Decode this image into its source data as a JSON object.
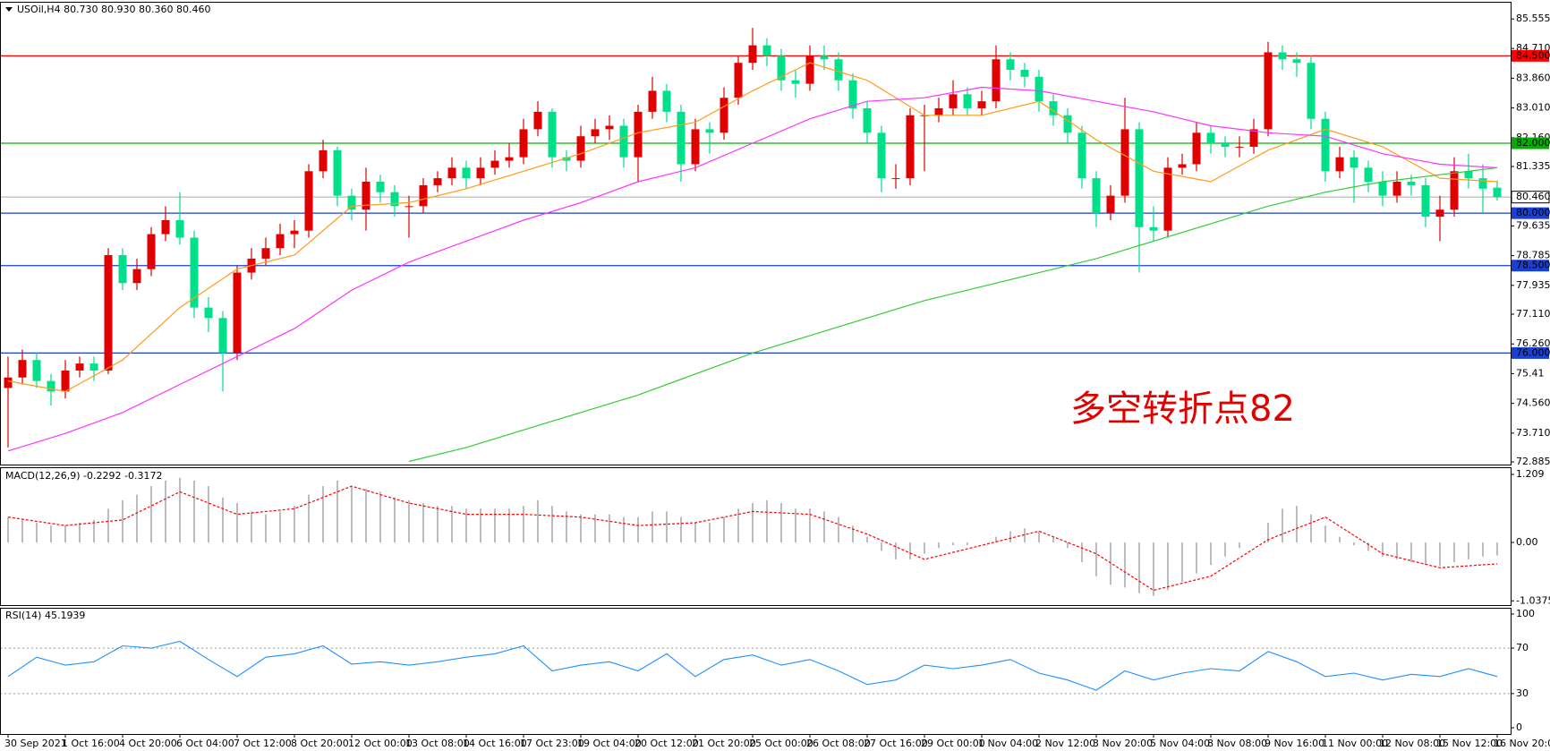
{
  "chart_data": {
    "type": "candlestick",
    "title": "USOil,H4  80.730 80.930 80.360 80.460",
    "annotation": "多空转折点82",
    "categories": [
      "30 Sep 2021",
      null,
      null,
      null,
      "1 Oct 16:00",
      null,
      null,
      null,
      "4 Oct 20:00",
      null,
      null,
      null,
      "6 Oct 04:00",
      null,
      null,
      null,
      "7 Oct 12:00",
      null,
      null,
      null,
      "8 Oct 20:00",
      null,
      null,
      null,
      "12 Oct 00:00",
      null,
      null,
      null,
      "13 Oct 08:00",
      null,
      null,
      null,
      "14 Oct 16:00",
      null,
      null,
      null,
      "17 Oct 23:00",
      null,
      null,
      null,
      "19 Oct 04:00",
      null,
      null,
      null,
      "20 Oct 12:00",
      null,
      null,
      null,
      "21 Oct 20:00",
      null,
      null,
      null,
      "25 Oct 00:00",
      null,
      null,
      null,
      "26 Oct 08:00",
      null,
      null,
      null,
      "27 Oct 16:00",
      null,
      null,
      null,
      "29 Oct 00:00",
      null,
      null,
      null,
      "1 Nov 04:00",
      null,
      null,
      null,
      "2 Nov 12:00",
      null,
      null,
      null,
      "3 Nov 20:00",
      null,
      null,
      null,
      "5 Nov 04:00",
      null,
      null,
      null,
      "8 Nov 08:00",
      null,
      null,
      null,
      "9 Nov 16:00",
      null,
      null,
      null,
      "11 Nov 00:00",
      null,
      null,
      null,
      "12 Nov 08:00",
      null,
      null,
      null,
      "15 Nov 12:00",
      null,
      null,
      null,
      "16 Nov 20:00"
    ],
    "open": [
      75.0,
      75.3,
      75.8,
      75.2,
      74.9,
      75.5,
      75.7,
      75.5,
      78.8,
      78.0,
      78.4,
      79.4,
      79.8,
      79.3,
      77.3,
      77.0,
      76.0,
      78.3,
      78.7,
      79.0,
      79.4,
      79.5,
      81.2,
      81.8,
      80.5,
      80.1,
      80.9,
      80.6,
      80.2,
      80.2,
      80.8,
      81.0,
      81.3,
      81.0,
      81.3,
      81.5,
      81.6,
      82.4,
      82.9,
      81.6,
      81.5,
      82.2,
      82.4,
      82.5,
      81.6,
      82.9,
      83.5,
      82.9,
      81.4,
      82.4,
      82.3,
      83.3,
      84.3,
      84.8,
      84.5,
      83.8,
      83.7,
      84.5,
      84.4,
      83.8,
      83.0,
      82.3,
      81.0,
      81.0,
      82.8,
      82.8,
      83.0,
      83.4,
      83.0,
      83.2,
      84.4,
      84.1,
      83.9,
      83.2,
      82.8,
      82.3,
      81.0,
      80.0,
      80.5,
      82.4,
      79.6,
      79.5,
      81.3,
      81.4,
      82.3,
      82.0,
      81.9,
      81.9,
      82.4,
      84.6,
      84.4,
      84.3,
      82.7,
      81.2,
      81.6,
      81.3,
      80.9,
      80.5,
      80.9,
      80.8,
      79.9,
      80.1,
      81.2,
      81.0,
      80.73
    ],
    "high": [
      75.9,
      76.1,
      76.0,
      75.4,
      75.8,
      75.9,
      75.9,
      79.0,
      79.0,
      78.7,
      79.6,
      80.2,
      80.6,
      79.5,
      77.6,
      77.2,
      78.5,
      79.0,
      79.3,
      79.7,
      79.8,
      81.4,
      82.1,
      81.9,
      80.7,
      81.3,
      81.1,
      80.8,
      80.5,
      81.0,
      81.2,
      81.6,
      81.5,
      81.6,
      81.8,
      82.0,
      82.7,
      83.2,
      83.0,
      81.8,
      82.5,
      82.7,
      82.8,
      82.7,
      83.1,
      83.9,
      83.7,
      83.1,
      82.7,
      82.6,
      83.6,
      84.5,
      85.3,
      85.0,
      84.7,
      84.1,
      84.8,
      84.8,
      84.6,
      84.0,
      83.2,
      82.5,
      81.4,
      83.0,
      83.1,
      83.3,
      83.8,
      83.6,
      83.5,
      84.8,
      84.6,
      84.3,
      84.1,
      83.4,
      83.0,
      82.5,
      81.2,
      80.8,
      83.3,
      82.6,
      80.2,
      81.6,
      81.7,
      82.6,
      82.5,
      82.2,
      82.2,
      82.7,
      84.9,
      84.8,
      84.6,
      84.5,
      82.9,
      81.9,
      81.8,
      81.5,
      81.2,
      81.2,
      81.1,
      81.0,
      80.5,
      81.6,
      81.7,
      81.4,
      80.93
    ],
    "low": [
      73.3,
      75.1,
      75.0,
      74.5,
      74.7,
      75.3,
      75.2,
      75.4,
      77.8,
      77.8,
      78.2,
      79.2,
      79.1,
      77.0,
      76.6,
      74.9,
      75.8,
      78.1,
      78.5,
      78.8,
      79.0,
      79.3,
      81.0,
      80.2,
      79.8,
      79.5,
      80.3,
      79.9,
      79.3,
      80.0,
      80.6,
      80.8,
      80.7,
      80.8,
      81.1,
      81.3,
      81.4,
      82.2,
      81.3,
      81.2,
      81.3,
      82.0,
      82.1,
      81.3,
      80.9,
      82.7,
      82.6,
      80.9,
      81.2,
      81.7,
      82.1,
      83.1,
      84.1,
      84.2,
      83.5,
      83.3,
      83.5,
      84.1,
      83.5,
      82.7,
      82.0,
      80.6,
      80.7,
      80.8,
      81.2,
      82.6,
      82.8,
      82.8,
      82.8,
      83.0,
      83.8,
      83.6,
      82.9,
      82.5,
      82.0,
      80.7,
      79.6,
      79.8,
      80.3,
      78.3,
      79.2,
      79.3,
      81.1,
      81.2,
      81.7,
      81.6,
      81.6,
      81.7,
      82.2,
      84.1,
      83.9,
      82.4,
      80.9,
      81.0,
      80.3,
      80.6,
      80.2,
      80.3,
      80.5,
      79.6,
      79.2,
      79.9,
      80.7,
      80.0,
      80.36
    ],
    "close": [
      75.3,
      75.8,
      75.2,
      74.9,
      75.5,
      75.7,
      75.5,
      78.8,
      78.0,
      78.4,
      79.4,
      79.8,
      79.3,
      77.3,
      77.0,
      76.0,
      78.3,
      78.7,
      79.0,
      79.4,
      79.5,
      81.2,
      81.8,
      80.5,
      80.1,
      80.9,
      80.6,
      80.2,
      80.2,
      80.8,
      81.0,
      81.3,
      81.0,
      81.3,
      81.5,
      81.6,
      82.4,
      82.9,
      81.6,
      81.5,
      82.2,
      82.4,
      82.5,
      81.6,
      82.9,
      83.5,
      82.9,
      81.4,
      82.4,
      82.3,
      83.3,
      84.3,
      84.8,
      84.5,
      83.8,
      83.7,
      84.5,
      84.4,
      83.8,
      83.0,
      82.3,
      81.0,
      81.0,
      82.8,
      82.8,
      83.0,
      83.4,
      83.0,
      83.2,
      84.4,
      84.1,
      83.9,
      83.2,
      82.8,
      82.3,
      81.0,
      80.0,
      80.5,
      82.4,
      79.6,
      79.5,
      81.3,
      81.4,
      82.3,
      82.0,
      81.9,
      81.9,
      82.4,
      84.6,
      84.4,
      84.3,
      82.7,
      81.2,
      81.6,
      81.3,
      80.9,
      80.5,
      80.9,
      80.8,
      79.9,
      80.1,
      81.2,
      81.0,
      80.7,
      80.46
    ],
    "up_color": "#e00000",
    "down_color": "#00e08a",
    "ylim": [
      72.81,
      86.02
    ],
    "yticks": [
      85.555,
      {
        "value": 84.71,
        "label": "84.710"
      },
      {
        "value": 83.86,
        "label": "83.860"
      },
      {
        "value": 83.01,
        "label": "83.010"
      },
      {
        "value": 82.16,
        "label": "82.160"
      },
      81.335,
      79.635,
      78.785,
      77.935,
      {
        "value": 77.11,
        "label": "77.110"
      },
      {
        "value": 76.26,
        "label": "76.260"
      },
      75.41,
      {
        "value": 74.56,
        "label": "74.560"
      },
      {
        "value": 73.71,
        "label": "73.710"
      },
      72.885
    ],
    "levels": [
      {
        "value": 84.5,
        "label": "84.500",
        "color": "#ff0000"
      },
      {
        "value": 82,
        "label": "82.000",
        "color": "#00b000"
      },
      {
        "value": 80,
        "label": "80.000",
        "color": "#1a3fd6"
      },
      {
        "value": 78.5,
        "label": "78.500",
        "color": "#1a3fd6"
      },
      {
        "value": 76,
        "label": "76.000",
        "color": "#1a3fd6"
      }
    ],
    "last_price": {
      "value": 80.46,
      "label": "80.460",
      "color": "#a8a8a8"
    },
    "moving_averages": [
      {
        "color": "#ff9a1a",
        "x": [
          0,
          4,
          8,
          12,
          16,
          20,
          24,
          28,
          32,
          36,
          40,
          44,
          48,
          52,
          56,
          60,
          64,
          68,
          72,
          76,
          80,
          84,
          88,
          92,
          96,
          100,
          104
        ],
        "values": [
          75.2,
          74.9,
          75.8,
          77.3,
          78.4,
          78.8,
          80.2,
          80.3,
          80.7,
          81.2,
          81.7,
          82.3,
          82.6,
          83.5,
          84.3,
          83.8,
          82.8,
          82.8,
          83.2,
          82.1,
          81.2,
          80.9,
          81.8,
          82.4,
          81.9,
          81.0,
          80.9
        ]
      },
      {
        "color": "#ff33ff",
        "x": [
          0,
          4,
          8,
          12,
          16,
          20,
          24,
          28,
          32,
          36,
          40,
          44,
          48,
          52,
          56,
          60,
          64,
          68,
          72,
          76,
          80,
          84,
          88,
          92,
          96,
          100,
          104
        ],
        "values": [
          73.2,
          73.7,
          74.3,
          75.1,
          75.9,
          76.7,
          77.8,
          78.6,
          79.2,
          79.8,
          80.3,
          80.9,
          81.3,
          82.0,
          82.7,
          83.2,
          83.3,
          83.6,
          83.5,
          83.2,
          82.9,
          82.5,
          82.3,
          82.2,
          81.7,
          81.4,
          81.3
        ]
      },
      {
        "color": "#33cc33",
        "x": [
          28,
          32,
          36,
          40,
          44,
          48,
          52,
          56,
          60,
          64,
          68,
          72,
          76,
          80,
          84,
          88,
          92,
          96,
          100,
          104
        ],
        "values": [
          72.9,
          73.3,
          73.8,
          74.3,
          74.8,
          75.4,
          76.0,
          76.5,
          77.0,
          77.5,
          77.9,
          78.3,
          78.7,
          79.2,
          79.7,
          80.2,
          80.6,
          80.9,
          81.1,
          81.3
        ]
      }
    ],
    "macd": {
      "title": "MACD(12,26,9) -0.2292 -0.3172",
      "histogram_color": "#a0a0a0",
      "histogram": [
        0.45,
        0.4,
        0.35,
        0.3,
        0.3,
        0.35,
        0.4,
        0.6,
        0.75,
        0.85,
        1.0,
        1.1,
        1.15,
        1.1,
        1.0,
        0.8,
        0.7,
        0.55,
        0.5,
        0.55,
        0.65,
        0.85,
        1.0,
        1.1,
        1.0,
        0.95,
        0.9,
        0.8,
        0.75,
        0.7,
        0.65,
        0.65,
        0.6,
        0.6,
        0.6,
        0.6,
        0.65,
        0.75,
        0.65,
        0.55,
        0.5,
        0.5,
        0.5,
        0.45,
        0.45,
        0.55,
        0.55,
        0.45,
        0.35,
        0.35,
        0.45,
        0.6,
        0.7,
        0.75,
        0.7,
        0.6,
        0.6,
        0.55,
        0.45,
        0.3,
        0.1,
        -0.15,
        -0.3,
        -0.3,
        -0.2,
        -0.1,
        -0.05,
        -0.05,
        0.0,
        0.1,
        0.2,
        0.25,
        0.2,
        0.1,
        -0.1,
        -0.35,
        -0.6,
        -0.75,
        -0.8,
        -0.9,
        -0.95,
        -0.85,
        -0.7,
        -0.55,
        -0.4,
        -0.25,
        -0.1,
        0.0,
        0.35,
        0.6,
        0.65,
        0.5,
        0.3,
        0.1,
        -0.05,
        -0.15,
        -0.25,
        -0.3,
        -0.35,
        -0.4,
        -0.42,
        -0.35,
        -0.3,
        -0.25,
        -0.23
      ],
      "signal": {
        "color": "#ff0000",
        "x": [
          0,
          4,
          8,
          12,
          16,
          20,
          24,
          28,
          32,
          36,
          40,
          44,
          48,
          52,
          56,
          60,
          64,
          68,
          72,
          76,
          80,
          84,
          88,
          92,
          96,
          100,
          104
        ],
        "values": [
          0.45,
          0.3,
          0.4,
          0.9,
          0.5,
          0.6,
          1.0,
          0.7,
          0.5,
          0.5,
          0.45,
          0.3,
          0.35,
          0.55,
          0.5,
          0.15,
          -0.3,
          -0.05,
          0.2,
          -0.2,
          -0.85,
          -0.6,
          0.05,
          0.45,
          -0.2,
          -0.45,
          -0.38
        ]
      },
      "ylim": [
        -1.113,
        1.32
      ],
      "yticks": [
        1.209,
        {
          "value": 0,
          "label": "0.00"
        },
        -1.0375
      ]
    },
    "rsi": {
      "title": "RSI(14) 45.1939",
      "color": "#1e90ff",
      "x": [
        0,
        2,
        4,
        6,
        8,
        10,
        12,
        14,
        16,
        18,
        20,
        22,
        24,
        26,
        28,
        30,
        32,
        34,
        36,
        38,
        40,
        42,
        44,
        46,
        48,
        50,
        52,
        54,
        56,
        58,
        60,
        62,
        64,
        66,
        68,
        70,
        72,
        74,
        76,
        78,
        80,
        82,
        84,
        86,
        88,
        90,
        92,
        94,
        96,
        98,
        100,
        102,
        104
      ],
      "values": [
        45,
        62,
        55,
        58,
        72,
        70,
        76,
        60,
        45,
        62,
        65,
        72,
        56,
        58,
        55,
        58,
        62,
        65,
        72,
        50,
        55,
        58,
        50,
        65,
        45,
        60,
        64,
        55,
        60,
        50,
        38,
        42,
        55,
        52,
        55,
        60,
        48,
        42,
        33,
        50,
        42,
        48,
        52,
        50,
        67,
        58,
        45,
        48,
        42,
        47,
        45,
        52,
        45
      ],
      "ylim": [
        -5.5,
        104.7
      ],
      "yticks": [
        100,
        70,
        30,
        0
      ],
      "levels": [
        70,
        30
      ]
    }
  }
}
